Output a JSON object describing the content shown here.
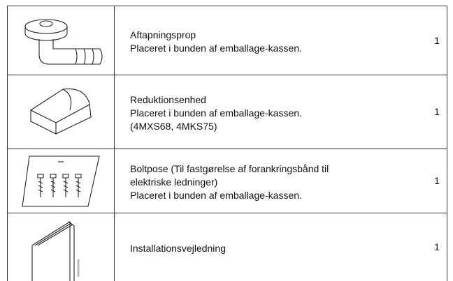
{
  "table": {
    "rows": [
      {
        "lines": [
          "Aftapningsprop",
          "Placeret i bunden af emballage-kassen."
        ],
        "qty": "1"
      },
      {
        "lines": [
          "Reduktionsenhed",
          "Placeret i bunden af emballage-kassen.",
          "(4MXS68, 4MKS75)"
        ],
        "qty": "1"
      },
      {
        "lines": [
          "Boltpose (Til fastgørelse af forankringsbånd til",
          "elektriske ledninger)",
          "Placeret i bunden af emballage-kassen."
        ],
        "qty": "1"
      },
      {
        "lines": [
          "Installationsvejledning"
        ],
        "qty": "1"
      }
    ]
  }
}
